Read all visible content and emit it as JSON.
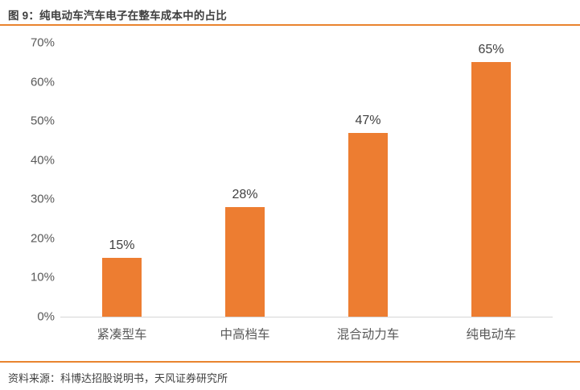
{
  "header": {
    "title": "图 9：纯电动车汽车电子在整车成本中的占比"
  },
  "footer": {
    "source": "资料来源：科博达招股说明书，天风证券研究所"
  },
  "colors": {
    "bar": "#ED7D31",
    "rule": "#E9842F",
    "axis_line": "#D6D6D6",
    "title_text": "#3F3F3F",
    "tick_text": "#595959",
    "category_text": "#595959",
    "data_label_text": "#404040",
    "source_text": "#3F3F3F",
    "background": "#FFFFFF"
  },
  "chart_data": {
    "type": "bar",
    "title": "图 9：纯电动车汽车电子在整车成本中的占比",
    "categories": [
      "紧凑型车",
      "中高档车",
      "混合动力车",
      "纯电动车"
    ],
    "values": [
      15,
      28,
      47,
      65
    ],
    "data_labels": [
      "15%",
      "28%",
      "47%",
      "65%"
    ],
    "xlabel": "",
    "ylabel": "",
    "ylim": [
      0,
      70
    ],
    "ytick_step": 10,
    "ytick_labels": [
      "0%",
      "10%",
      "20%",
      "30%",
      "40%",
      "50%",
      "60%",
      "70%"
    ],
    "grid": false,
    "legend": "none",
    "source": "资料来源：科博达招股说明书，天风证券研究所"
  }
}
